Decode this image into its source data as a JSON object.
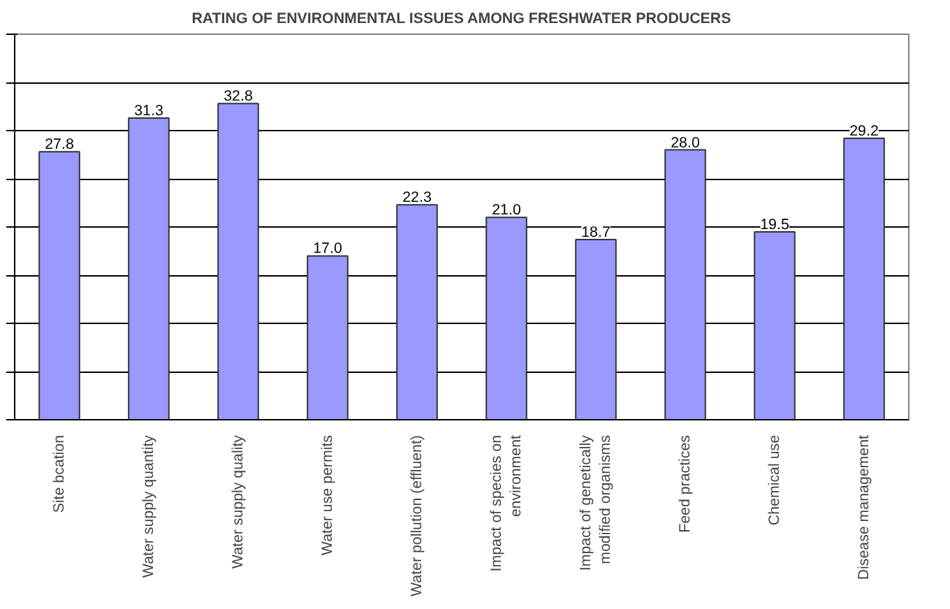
{
  "chart_data": {
    "type": "bar",
    "title": "RATING OF ENVIRONMENTAL ISSUES AMONG FRESHWATER PRODUCERS",
    "categories": [
      "Site bcation",
      "Water supply quantity",
      "Water supply quality",
      "Water use permits",
      "Water pollution (effluent)",
      "Impact of species on environment",
      "Impact of genetically modified organisms",
      "Feed practices",
      "Chemical use",
      "Disease management"
    ],
    "values": [
      27.8,
      31.3,
      32.8,
      17.0,
      22.3,
      21.0,
      18.7,
      28.0,
      19.5,
      29.2
    ],
    "value_labels": [
      "27.8",
      "31.3",
      "32.8",
      "17.0",
      "22.3",
      "21.0",
      "18.7",
      "28.0",
      "19.5",
      "29.2"
    ],
    "color": "#9999ff",
    "ylim": [
      0,
      40
    ],
    "yticks": [
      {
        "value": 0,
        "label": null
      },
      {
        "value": 5,
        "label": null
      },
      {
        "value": 10,
        "label": null
      },
      {
        "value": 15,
        "label": null
      },
      {
        "value": 20,
        "label": null
      },
      {
        "value": 25,
        "label": null
      },
      {
        "value": 30,
        "label": null
      },
      {
        "value": 35,
        "label": null
      },
      {
        "value": 40,
        "label": null
      }
    ],
    "grid": "y",
    "tick_labels": "x"
  }
}
